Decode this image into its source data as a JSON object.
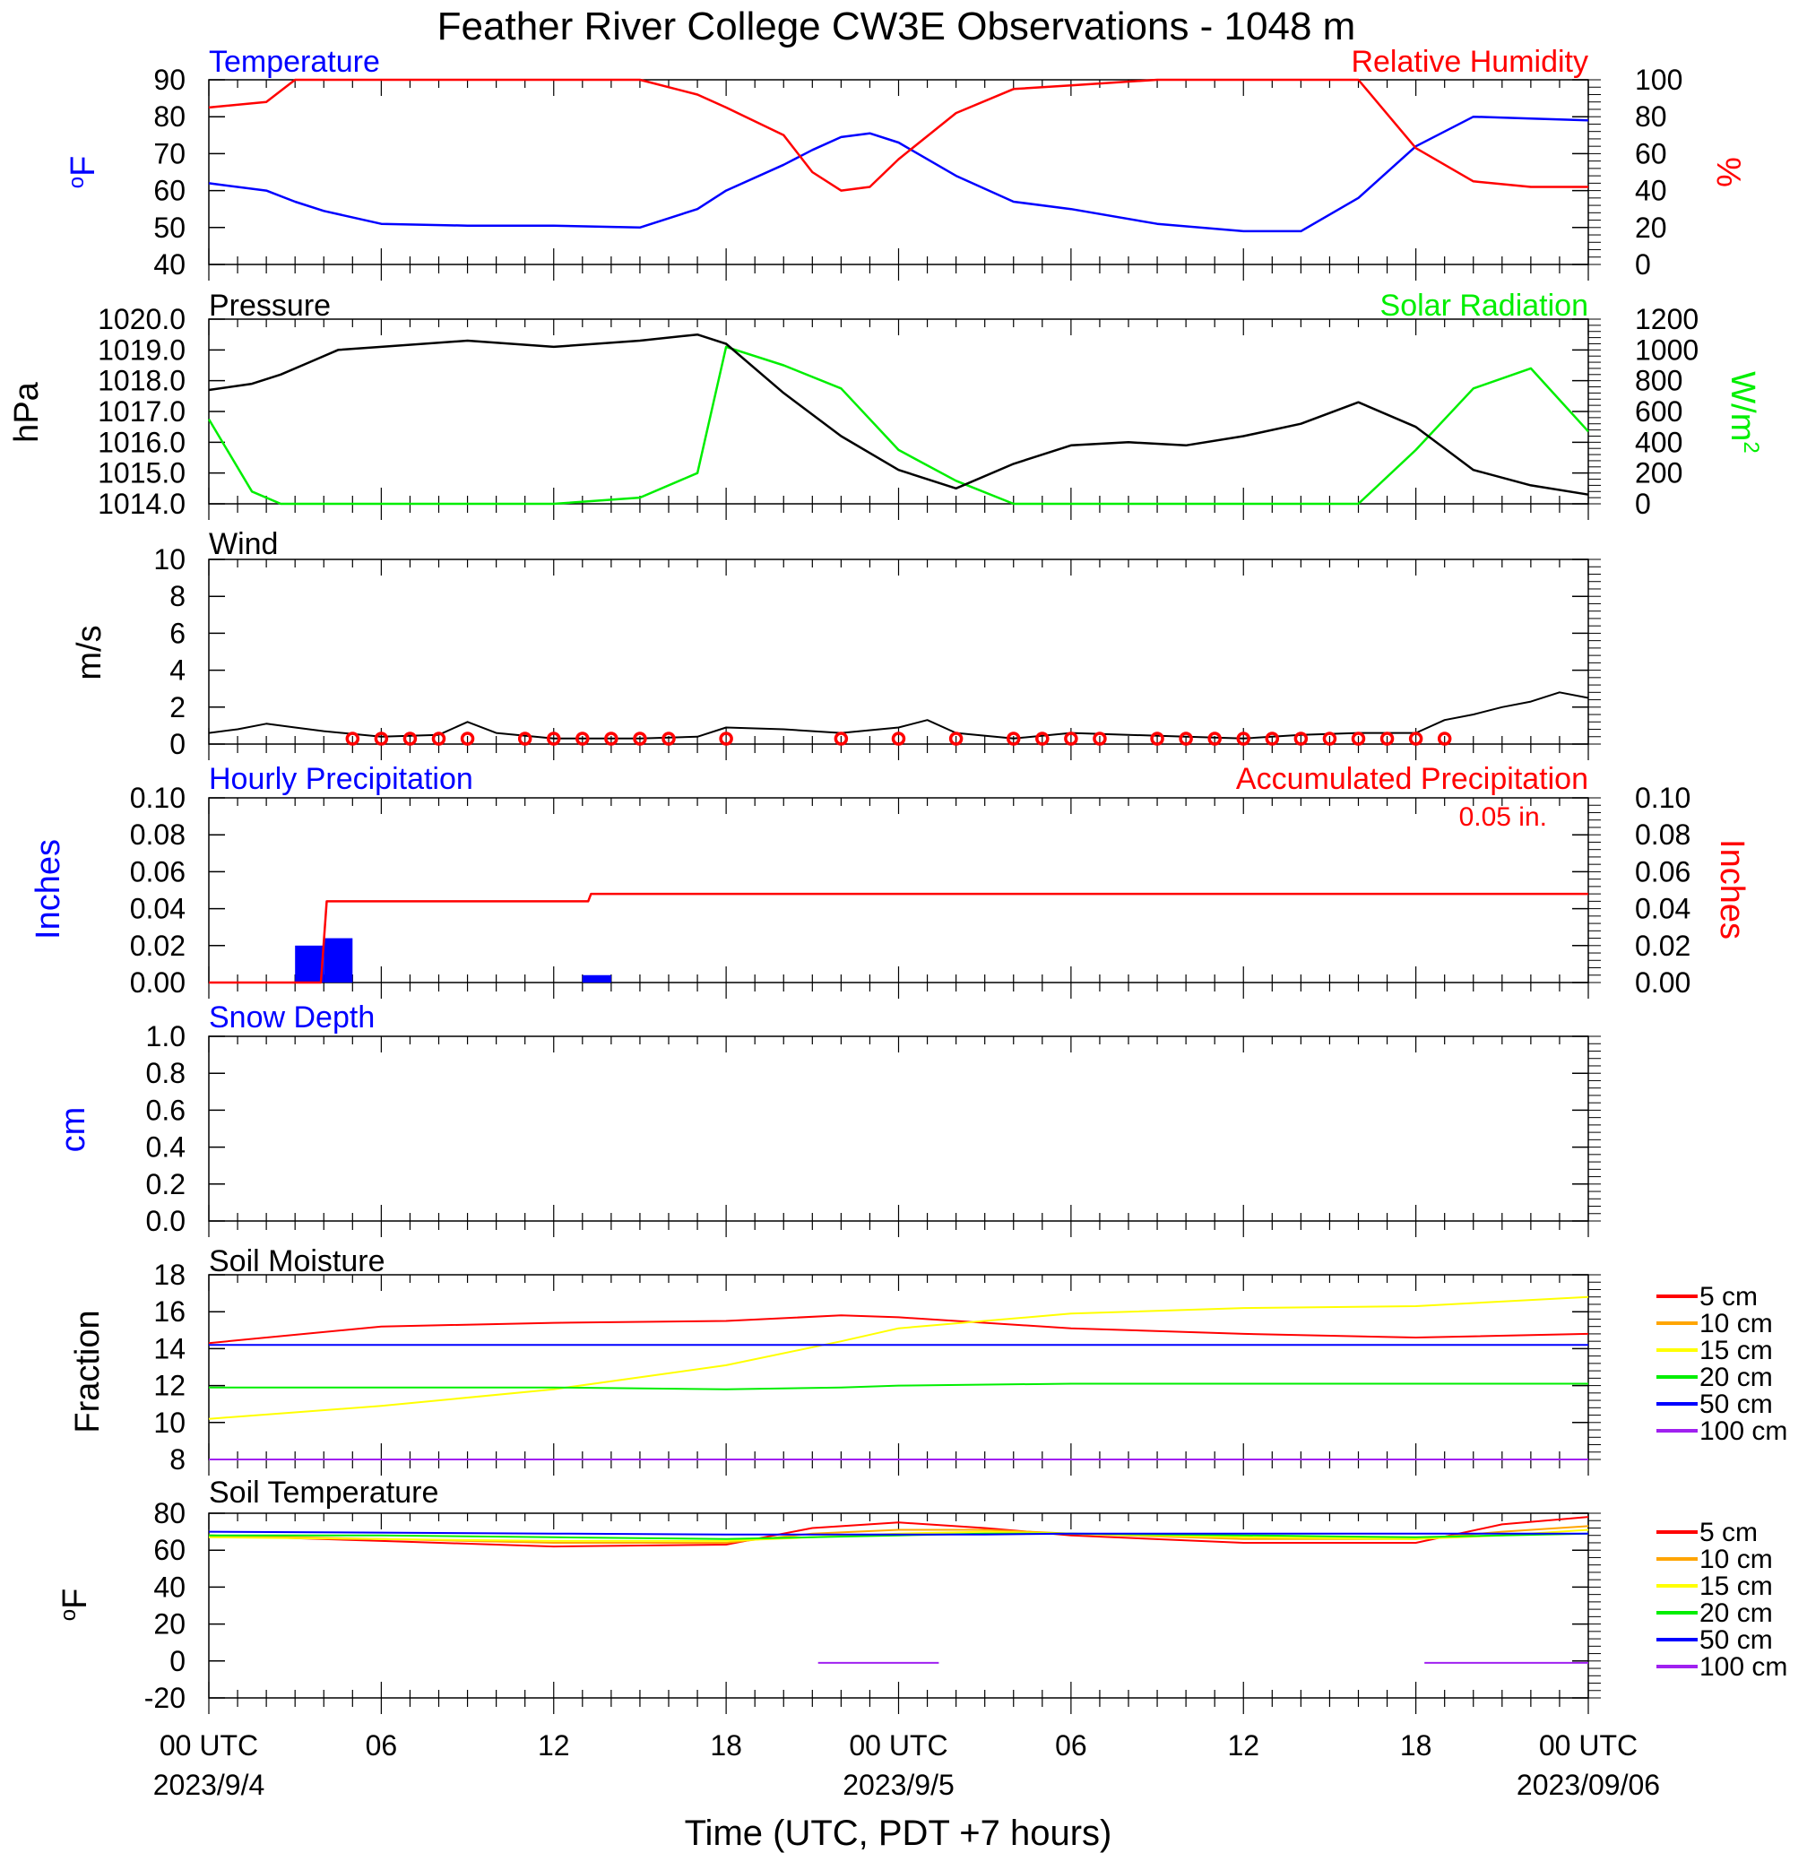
{
  "title": "Feather River College CW3E Observations - 1048 m",
  "colors": {
    "temperature": "#0000ff",
    "humidity": "#ff0000",
    "pressure": "#000000",
    "solar": "#00ee00",
    "wind": "#000000",
    "wind_barbs": "#ff0000",
    "hourly_precip": "#0000ff",
    "accum_precip": "#ff0000",
    "snow": "#0000ff"
  },
  "x_axis": {
    "ticks": [
      "00 UTC",
      "06",
      "12",
      "18",
      "00 UTC",
      "06",
      "12",
      "18",
      "00 UTC"
    ],
    "dates": [
      "2023/9/4",
      "2023/9/5",
      "2023/09/06"
    ],
    "label": "Time (UTC, PDT +7 hours)"
  },
  "legend_depths": {
    "labels": [
      "5 cm",
      "10 cm",
      "15 cm",
      "20 cm",
      "50 cm",
      "100 cm"
    ],
    "colors": [
      "#ff0000",
      "#ffa500",
      "#ffff00",
      "#00ee00",
      "#0000ff",
      "#a020f0"
    ]
  },
  "chart_data": [
    {
      "type": "line",
      "title": "Temperature",
      "title_right": "Relative Humidity",
      "ylabel": "oF",
      "ylabel_right": "%",
      "ylim": [
        40,
        90
      ],
      "ylim_right": [
        0,
        100
      ],
      "yticks": [
        "90",
        "80",
        "70",
        "60",
        "50",
        "40"
      ],
      "yticks_right": [
        "100",
        "80",
        "60",
        "40",
        "20",
        "0"
      ],
      "x_hours": [
        0,
        2,
        3,
        4,
        6,
        9,
        12,
        15,
        17,
        18,
        20,
        21,
        22,
        23,
        24,
        26,
        28,
        30,
        33,
        36,
        38,
        40,
        42,
        44,
        46,
        48
      ],
      "series": [
        {
          "name": "Temperature",
          "axis": "left",
          "values": [
            62,
            60,
            57,
            54.5,
            51,
            50.5,
            50.5,
            50,
            55,
            60,
            67,
            71,
            74.5,
            75.5,
            73,
            64,
            57,
            55,
            51,
            49,
            49,
            58,
            72,
            80,
            79.5,
            79
          ]
        },
        {
          "name": "Relative Humidity",
          "axis": "right",
          "values": [
            85,
            88,
            100,
            100,
            100,
            100,
            100,
            100,
            92,
            85,
            70,
            50,
            40,
            42,
            57,
            82,
            95,
            97,
            100,
            100,
            100,
            100,
            63,
            45,
            42,
            42
          ]
        }
      ]
    },
    {
      "type": "line",
      "title": "Pressure",
      "title_right": "Solar Radiation",
      "ylabel": "hPa",
      "ylabel_right": "W/m2",
      "ylim": [
        1014.0,
        1020.0
      ],
      "ylim_right": [
        0,
        1200
      ],
      "yticks": [
        "1020.0",
        "1019.0",
        "1018.0",
        "1017.0",
        "1016.0",
        "1015.0",
        "1014.0"
      ],
      "yticks_right": [
        "1200",
        "1000",
        "800",
        "600",
        "400",
        "200",
        "0"
      ],
      "x_hours": [
        0,
        1.5,
        2.5,
        3.5,
        4.5,
        6,
        9,
        12,
        15,
        17,
        18,
        20,
        22,
        24,
        26,
        28,
        30,
        32,
        34,
        36,
        38,
        40,
        42,
        44,
        46,
        48
      ],
      "series": [
        {
          "name": "Pressure",
          "axis": "left",
          "values": [
            1017.7,
            1017.9,
            1018.2,
            1018.6,
            1019.0,
            1019.1,
            1019.3,
            1019.1,
            1019.3,
            1019.5,
            1019.2,
            1017.6,
            1016.2,
            1015.1,
            1014.5,
            1015.3,
            1015.9,
            1016.0,
            1015.9,
            1016.2,
            1016.6,
            1017.3,
            1016.5,
            1015.1,
            1014.6,
            1014.3
          ]
        },
        {
          "name": "Solar Radiation",
          "axis": "right",
          "values": [
            550,
            80,
            0,
            0,
            0,
            0,
            0,
            0,
            40,
            200,
            1020,
            900,
            750,
            350,
            150,
            0,
            0,
            0,
            0,
            0,
            0,
            0,
            350,
            750,
            880,
            470
          ]
        }
      ]
    },
    {
      "type": "line",
      "title": "Wind",
      "ylabel": "m/s",
      "ylim": [
        0,
        10
      ],
      "yticks": [
        "10",
        "8",
        "6",
        "4",
        "2",
        "0"
      ],
      "x_hours": [
        0,
        1,
        2,
        3,
        4,
        6,
        8,
        9,
        10,
        12,
        15,
        17,
        18,
        20,
        22,
        24,
        25,
        26,
        28,
        30,
        32,
        34,
        36,
        38,
        40,
        42,
        43,
        44,
        45,
        46,
        47,
        48
      ],
      "series": [
        {
          "name": "Wind speed",
          "values": [
            0.6,
            0.8,
            1.1,
            0.9,
            0.7,
            0.4,
            0.5,
            1.2,
            0.6,
            0.3,
            0.3,
            0.4,
            0.9,
            0.8,
            0.6,
            0.9,
            1.3,
            0.6,
            0.3,
            0.6,
            0.5,
            0.4,
            0.3,
            0.5,
            0.6,
            0.6,
            1.3,
            1.6,
            2.0,
            2.3,
            2.8,
            2.5
          ]
        }
      ],
      "calm_markers_hours": [
        5,
        6,
        7,
        8,
        9,
        11,
        12,
        13,
        14,
        15,
        16,
        18,
        22,
        24,
        26,
        28,
        29,
        30,
        31,
        33,
        34,
        35,
        36,
        37,
        38,
        39,
        40,
        41,
        42,
        43
      ]
    },
    {
      "type": "bar",
      "title": "Hourly Precipitation",
      "title_right": "Accumulated Precipitation",
      "annotation": "0.05 in.",
      "ylabel": "Inches",
      "ylabel_right": "Inches",
      "ylim": [
        0,
        0.1
      ],
      "ylim_right": [
        0,
        0.1
      ],
      "yticks": [
        "0.10",
        "0.08",
        "0.06",
        "0.04",
        "0.02",
        "0.00"
      ],
      "yticks_right": [
        "0.10",
        "0.08",
        "0.06",
        "0.04",
        "0.02",
        "0.00"
      ],
      "bars": [
        {
          "hour": 3,
          "value": 0.02
        },
        {
          "hour": 4,
          "value": 0.024
        },
        {
          "hour": 13,
          "value": 0.004
        }
      ],
      "accumulated": {
        "x_hours": [
          0,
          3.9,
          4.1,
          13.2,
          13.3,
          48
        ],
        "values": [
          0,
          0,
          0.044,
          0.044,
          0.048,
          0.048
        ]
      }
    },
    {
      "type": "line",
      "title": "Snow Depth",
      "ylabel": "cm",
      "ylim": [
        0,
        1
      ],
      "yticks": [
        "1.0",
        "0.8",
        "0.6",
        "0.4",
        "0.2",
        "0.0"
      ],
      "series": []
    },
    {
      "type": "line",
      "title": "Soil Moisture",
      "ylabel": "Fraction",
      "ylim": [
        8,
        18
      ],
      "yticks": [
        "18",
        "16",
        "14",
        "12",
        "10",
        "8"
      ],
      "x_hours": [
        0,
        6,
        12,
        18,
        22,
        24,
        30,
        36,
        42,
        48
      ],
      "series": [
        {
          "name": "5 cm",
          "values": [
            14.3,
            15.2,
            15.4,
            15.5,
            15.8,
            15.7,
            15.1,
            14.8,
            14.6,
            14.8
          ]
        },
        {
          "name": "15 cm",
          "values": [
            10.2,
            10.9,
            11.8,
            13.1,
            14.4,
            15.1,
            15.9,
            16.2,
            16.3,
            16.8
          ]
        },
        {
          "name": "20 cm",
          "values": [
            11.9,
            11.9,
            11.9,
            11.8,
            11.9,
            12.0,
            12.1,
            12.1,
            12.1,
            12.1
          ]
        },
        {
          "name": "50 cm",
          "values": [
            14.2,
            14.2,
            14.2,
            14.2,
            14.2,
            14.2,
            14.2,
            14.2,
            14.2,
            14.2
          ]
        },
        {
          "name": "100 cm",
          "values": [
            8.0,
            8.0,
            8.0,
            8.0,
            8.0,
            8.0,
            8.0,
            8.0,
            8.0,
            8.0
          ]
        }
      ]
    },
    {
      "type": "line",
      "title": "Soil Temperature",
      "ylabel": "oF",
      "ylim": [
        -20,
        80
      ],
      "yticks": [
        "80",
        "60",
        "40",
        "20",
        "0",
        "-20"
      ],
      "x_hours": [
        0,
        6,
        12,
        18,
        21,
        24,
        27,
        30,
        36,
        42,
        45,
        48
      ],
      "series": [
        {
          "name": "5 cm",
          "values": [
            68,
            65,
            62,
            63,
            72,
            75,
            72,
            68,
            64,
            64,
            74,
            78
          ]
        },
        {
          "name": "10 cm",
          "values": [
            68,
            66,
            64,
            64,
            69,
            71,
            71,
            69,
            66,
            66,
            70,
            73
          ]
        },
        {
          "name": "15 cm",
          "values": [
            67,
            66,
            65,
            65,
            67,
            69,
            70,
            69,
            67,
            66,
            68,
            71
          ]
        },
        {
          "name": "20 cm",
          "values": [
            68,
            68,
            67,
            66,
            67,
            68,
            69,
            69,
            68,
            67,
            68,
            69
          ]
        },
        {
          "name": "50 cm",
          "values": [
            70,
            69.5,
            69,
            68.5,
            68.5,
            68.5,
            68.5,
            69,
            69,
            69,
            69,
            69
          ]
        }
      ],
      "segments_100cm": [
        {
          "x_hours": [
            21.2,
            25.4
          ],
          "values": [
            -1,
            -1
          ]
        },
        {
          "x_hours": [
            42.3,
            48
          ],
          "values": [
            -1,
            -1
          ]
        }
      ]
    }
  ]
}
